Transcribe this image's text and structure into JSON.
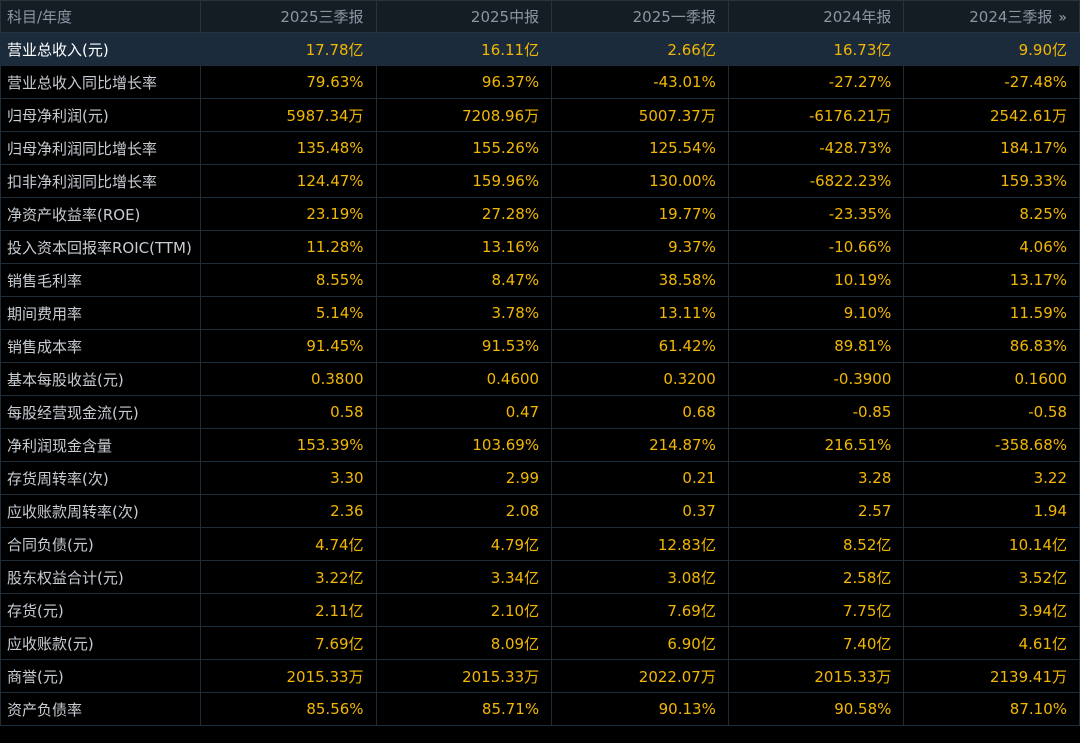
{
  "header": {
    "label": "科目/年度",
    "periods": [
      "2025三季报",
      "2025中报",
      "2025一季报",
      "2024年报",
      "2024三季报"
    ],
    "expand_glyph": "»"
  },
  "rows": [
    {
      "label": "营业总收入(元)",
      "values": [
        "17.78亿",
        "16.11亿",
        "2.66亿",
        "16.73亿",
        "9.90亿"
      ]
    },
    {
      "label": "营业总收入同比增长率",
      "values": [
        "79.63%",
        "96.37%",
        "-43.01%",
        "-27.27%",
        "-27.48%"
      ]
    },
    {
      "label": "归母净利润(元)",
      "values": [
        "5987.34万",
        "7208.96万",
        "5007.37万",
        "-6176.21万",
        "2542.61万"
      ]
    },
    {
      "label": "归母净利润同比增长率",
      "values": [
        "135.48%",
        "155.26%",
        "125.54%",
        "-428.73%",
        "184.17%"
      ]
    },
    {
      "label": "扣非净利润同比增长率",
      "values": [
        "124.47%",
        "159.96%",
        "130.00%",
        "-6822.23%",
        "159.33%"
      ]
    },
    {
      "label": "净资产收益率(ROE)",
      "values": [
        "23.19%",
        "27.28%",
        "19.77%",
        "-23.35%",
        "8.25%"
      ]
    },
    {
      "label": "投入资本回报率ROIC(TTM)",
      "values": [
        "11.28%",
        "13.16%",
        "9.37%",
        "-10.66%",
        "4.06%"
      ]
    },
    {
      "label": "销售毛利率",
      "values": [
        "8.55%",
        "8.47%",
        "38.58%",
        "10.19%",
        "13.17%"
      ]
    },
    {
      "label": "期间费用率",
      "values": [
        "5.14%",
        "3.78%",
        "13.11%",
        "9.10%",
        "11.59%"
      ]
    },
    {
      "label": "销售成本率",
      "values": [
        "91.45%",
        "91.53%",
        "61.42%",
        "89.81%",
        "86.83%"
      ]
    },
    {
      "label": "基本每股收益(元)",
      "values": [
        "0.3800",
        "0.4600",
        "0.3200",
        "-0.3900",
        "0.1600"
      ]
    },
    {
      "label": "每股经营现金流(元)",
      "values": [
        "0.58",
        "0.47",
        "0.68",
        "-0.85",
        "-0.58"
      ]
    },
    {
      "label": "净利润现金含量",
      "values": [
        "153.39%",
        "103.69%",
        "214.87%",
        "216.51%",
        "-358.68%"
      ]
    },
    {
      "label": "存货周转率(次)",
      "values": [
        "3.30",
        "2.99",
        "0.21",
        "3.28",
        "3.22"
      ]
    },
    {
      "label": "应收账款周转率(次)",
      "values": [
        "2.36",
        "2.08",
        "0.37",
        "2.57",
        "1.94"
      ]
    },
    {
      "label": "合同负债(元)",
      "values": [
        "4.74亿",
        "4.79亿",
        "12.83亿",
        "8.52亿",
        "10.14亿"
      ]
    },
    {
      "label": "股东权益合计(元)",
      "values": [
        "3.22亿",
        "3.34亿",
        "3.08亿",
        "2.58亿",
        "3.52亿"
      ]
    },
    {
      "label": "存货(元)",
      "values": [
        "2.11亿",
        "2.10亿",
        "7.69亿",
        "7.75亿",
        "3.94亿"
      ]
    },
    {
      "label": "应收账款(元)",
      "values": [
        "7.69亿",
        "8.09亿",
        "6.90亿",
        "7.40亿",
        "4.61亿"
      ]
    },
    {
      "label": "商誉(元)",
      "values": [
        "2015.33万",
        "2015.33万",
        "2022.07万",
        "2015.33万",
        "2139.41万"
      ]
    },
    {
      "label": "资产负债率",
      "values": [
        "85.56%",
        "85.71%",
        "90.13%",
        "90.58%",
        "87.10%"
      ]
    }
  ],
  "colors": {
    "value": "#f2b705",
    "label": "#c7ccd2",
    "header_text": "#8b96a3",
    "header_bg": "#141c24",
    "highlight_bg": "#1b2b3b",
    "grid_line": "#1b2c3a",
    "background": "#000000"
  }
}
